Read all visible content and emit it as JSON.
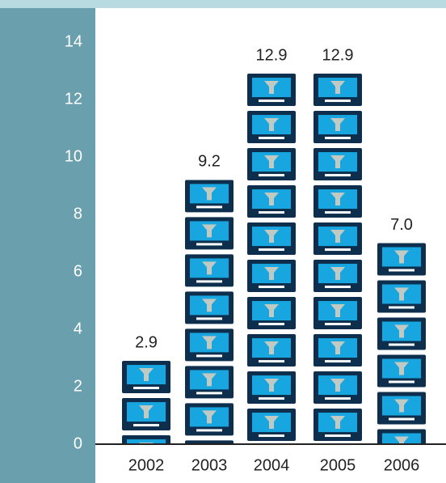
{
  "chart_data": {
    "type": "bar",
    "categories": [
      "2002",
      "2003",
      "2004",
      "2005",
      "2006"
    ],
    "values": [
      2.9,
      9.2,
      12.9,
      12.9,
      7.0
    ],
    "value_labels": [
      "2.9",
      "9.2",
      "12.9",
      "12.9",
      "7.0"
    ],
    "title": "",
    "xlabel": "",
    "ylabel": "",
    "ylim": [
      0,
      14
    ],
    "yticks": [
      "0",
      "2",
      "4",
      "6",
      "8",
      "10",
      "12",
      "14"
    ],
    "grid": false,
    "legend": "none",
    "icon": "tv-icon",
    "colors": {
      "frame": "#b7dbe0",
      "y_axis_panel": "#6aa0ae",
      "plot_background": "#ffffff",
      "icon_bezel": "#0d2f4d",
      "icon_screen": "#17a6df",
      "icon_highlight": "#c0c9c2",
      "icon_stand": "#ffffff"
    }
  }
}
